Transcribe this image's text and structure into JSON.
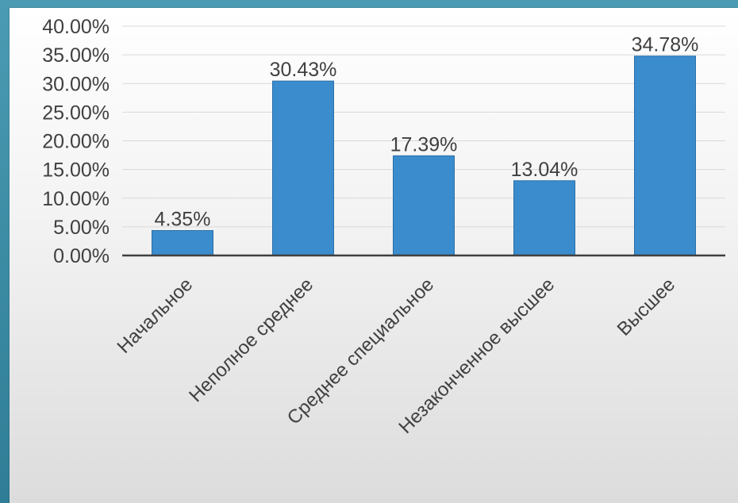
{
  "chart_data": {
    "type": "bar",
    "categories": [
      "Начальное",
      "Неполное среднее",
      "Среднее специальное",
      "Незаконченное высшее",
      "Высшее"
    ],
    "values": [
      4.35,
      30.43,
      17.39,
      13.04,
      34.78
    ],
    "data_labels": [
      "4.35%",
      "30.43%",
      "17.39%",
      "13.04%",
      "34.78%"
    ],
    "y_ticks": [
      "0.00%",
      "5.00%",
      "10.00%",
      "15.00%",
      "20.00%",
      "25.00%",
      "30.00%",
      "35.00%",
      "40.00%"
    ],
    "ylim": [
      0,
      40
    ],
    "grid": true,
    "legend": "none",
    "title": "",
    "xlabel": "",
    "ylabel": "",
    "colors": {
      "bar": "#3a8ccd",
      "bar_border": "#2a6fa8",
      "axis": "#404040",
      "grid": "#d9d9d9",
      "frame": "#3f8fa8"
    }
  }
}
